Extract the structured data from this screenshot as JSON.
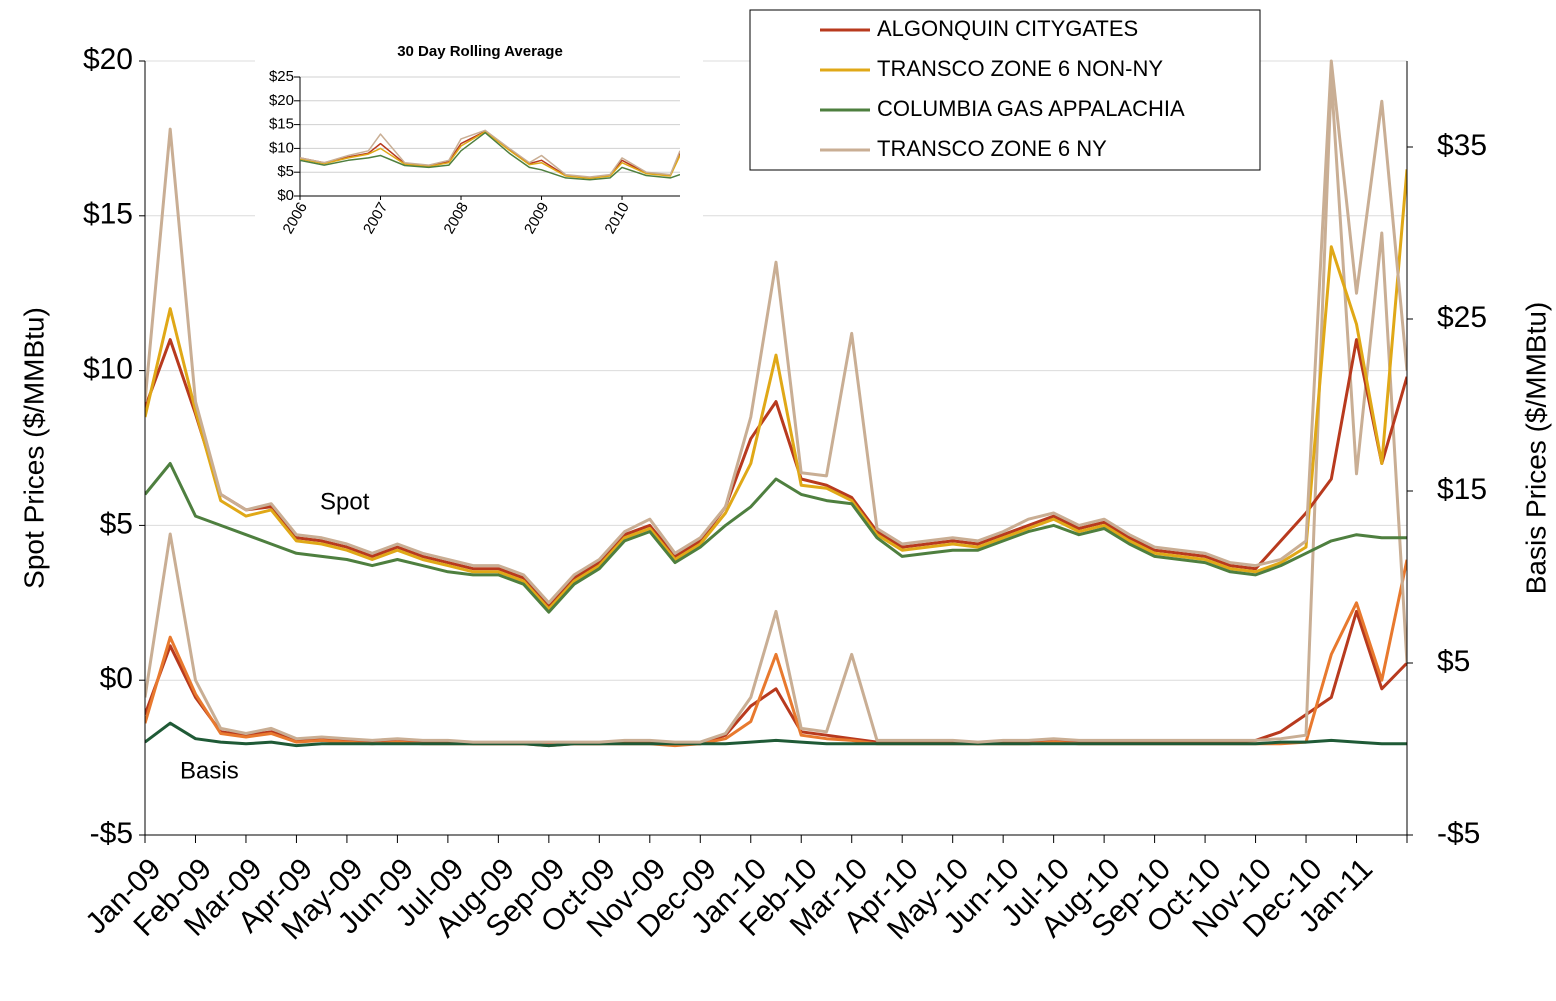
{
  "chart_data": [
    {
      "type": "line",
      "y_label": "Spot Prices ($/MMBtu)",
      "y2_label": "Basis Prices ($/MMBtu)",
      "annotations": [
        "Spot",
        "Basis"
      ],
      "grid": true,
      "categories": [
        "Jan-09",
        null,
        "Feb-09",
        null,
        "Mar-09",
        null,
        "Apr-09",
        null,
        "May-09",
        null,
        "Jun-09",
        null,
        "Jul-09",
        null,
        "Aug-09",
        null,
        "Sep-09",
        null,
        "Oct-09",
        null,
        "Nov-09",
        null,
        "Dec-09",
        null,
        "Jan-10",
        null,
        "Feb-10",
        null,
        "Mar-10",
        null,
        "Apr-10",
        null,
        "May-10",
        null,
        "Jun-10",
        null,
        "Jul-10",
        null,
        "Aug-10",
        null,
        "Sep-10",
        null,
        "Oct-10",
        null,
        "Nov-10",
        null,
        "Dec-10",
        null,
        "Jan-11",
        null,
        null
      ],
      "ylim": [
        -5,
        20
      ],
      "yticks": [
        {
          "value": -5,
          "label": "-$5"
        },
        {
          "value": 0,
          "label": "$0"
        },
        {
          "value": 5,
          "label": "$5"
        },
        {
          "value": 10,
          "label": "$10"
        },
        {
          "value": 15,
          "label": "$15"
        },
        {
          "value": 20,
          "label": "$20"
        }
      ],
      "y2lim": [
        -5,
        40
      ],
      "y2ticks": [
        {
          "value": -5,
          "label": "-$5"
        },
        {
          "value": 5,
          "label": "$5"
        },
        {
          "value": 15,
          "label": "$15"
        },
        {
          "value": 25,
          "label": "$25"
        },
        {
          "value": 35,
          "label": "$35"
        }
      ],
      "series": [
        {
          "name": "ALGONQUIN CITYGATES",
          "color": "#b83a1e",
          "values": [
            8.8,
            11,
            8.6,
            6,
            5.5,
            5.6,
            4.6,
            4.5,
            4.3,
            4.0,
            4.3,
            4.0,
            3.8,
            3.6,
            3.6,
            3.3,
            2.4,
            3.3,
            3.8,
            4.7,
            5.0,
            4.0,
            4.5,
            5.6,
            7.8,
            9.0,
            6.5,
            6.3,
            5.9,
            4.8,
            4.3,
            4.4,
            4.5,
            4.4,
            4.7,
            5.0,
            5.3,
            4.9,
            5.1,
            4.6,
            4.2,
            4.1,
            4.0,
            3.7,
            3.6,
            4.5,
            5.4,
            6.5,
            11,
            7,
            9.8
          ]
        },
        {
          "name": "TRANSCO ZONE 6 NON-NY",
          "color": "#e0a817",
          "values": [
            8.5,
            12,
            8.7,
            5.8,
            5.3,
            5.5,
            4.5,
            4.4,
            4.2,
            3.9,
            4.2,
            3.9,
            3.7,
            3.5,
            3.5,
            3.2,
            2.3,
            3.2,
            3.7,
            4.6,
            4.9,
            3.9,
            4.4,
            5.4,
            7.0,
            10.5,
            6.3,
            6.2,
            5.8,
            4.7,
            4.2,
            4.3,
            4.4,
            4.3,
            4.6,
            4.9,
            5.2,
            4.8,
            5.0,
            4.5,
            4.1,
            4.0,
            3.9,
            3.6,
            3.5,
            3.8,
            4.3,
            14,
            11.5,
            7,
            16.5
          ]
        },
        {
          "name": "COLUMBIA GAS APPALACHIA",
          "color": "#4e7f3f",
          "values": [
            6,
            7,
            5.3,
            5.0,
            4.7,
            4.4,
            4.1,
            4.0,
            3.9,
            3.7,
            3.9,
            3.7,
            3.5,
            3.4,
            3.4,
            3.1,
            2.2,
            3.1,
            3.6,
            4.5,
            4.8,
            3.8,
            4.3,
            5.0,
            5.6,
            6.5,
            6.0,
            5.8,
            5.7,
            4.6,
            4.0,
            4.1,
            4.2,
            4.2,
            4.5,
            4.8,
            5.0,
            4.7,
            4.9,
            4.4,
            4.0,
            3.9,
            3.8,
            3.5,
            3.4,
            3.7,
            4.1,
            4.5,
            4.7,
            4.6,
            4.6
          ]
        },
        {
          "name": "TRANSCO ZONE 6 NY",
          "color": "#c9ae94",
          "values": [
            9,
            17.8,
            9,
            6,
            5.5,
            5.7,
            4.7,
            4.6,
            4.4,
            4.1,
            4.4,
            4.1,
            3.9,
            3.7,
            3.7,
            3.4,
            2.5,
            3.4,
            3.9,
            4.8,
            5.2,
            4.1,
            4.6,
            5.6,
            8.5,
            13.5,
            6.7,
            6.6,
            11.2,
            4.9,
            4.4,
            4.5,
            4.6,
            4.5,
            4.8,
            5.2,
            5.4,
            5.0,
            5.2,
            4.7,
            4.3,
            4.2,
            4.1,
            3.8,
            3.7,
            3.9,
            4.5,
            20,
            12.5,
            18.7,
            10
          ]
        }
      ],
      "basis_series": [
        {
          "axis": "y2",
          "color": "#b83a1e",
          "values": [
            2,
            6,
            3,
            1,
            0.8,
            1.0,
            0.5,
            0.6,
            0.5,
            0.4,
            0.5,
            0.4,
            0.4,
            0.3,
            0.3,
            0.3,
            0.3,
            0.3,
            0.3,
            0.4,
            0.4,
            0.3,
            0.3,
            0.8,
            2.5,
            3.5,
            1.0,
            0.8,
            0.6,
            0.4,
            0.4,
            0.4,
            0.4,
            0.3,
            0.4,
            0.4,
            0.5,
            0.4,
            0.4,
            0.4,
            0.4,
            0.4,
            0.4,
            0.4,
            0.5,
            1.0,
            2.0,
            3.0,
            8.0,
            3.5,
            5.0
          ]
        },
        {
          "axis": "y2",
          "color": "#e8792e",
          "values": [
            1.5,
            6.5,
            3.2,
            0.9,
            0.7,
            0.9,
            0.4,
            0.5,
            0.4,
            0.3,
            0.4,
            0.3,
            0.3,
            0.3,
            0.3,
            0.3,
            0.2,
            0.3,
            0.3,
            0.3,
            0.3,
            0.2,
            0.3,
            0.6,
            1.6,
            5.5,
            0.8,
            0.6,
            0.5,
            0.3,
            0.3,
            0.3,
            0.3,
            0.3,
            0.3,
            0.3,
            0.4,
            0.3,
            0.3,
            0.3,
            0.3,
            0.3,
            0.3,
            0.3,
            0.3,
            0.3,
            0.4,
            5.5,
            8.5,
            4,
            11
          ]
        },
        {
          "axis": "y2",
          "color": "#1f5a36",
          "values": [
            0.4,
            1.5,
            0.6,
            0.4,
            0.3,
            0.4,
            0.2,
            0.3,
            0.3,
            0.3,
            0.3,
            0.3,
            0.3,
            0.3,
            0.3,
            0.3,
            0.2,
            0.3,
            0.3,
            0.3,
            0.3,
            0.3,
            0.3,
            0.3,
            0.4,
            0.5,
            0.4,
            0.3,
            0.3,
            0.3,
            0.3,
            0.3,
            0.3,
            0.3,
            0.3,
            0.3,
            0.3,
            0.3,
            0.3,
            0.3,
            0.3,
            0.3,
            0.3,
            0.3,
            0.3,
            0.4,
            0.4,
            0.5,
            0.4,
            0.3,
            0.3
          ]
        },
        {
          "axis": "y2",
          "color": "#c9ae94",
          "values": [
            3,
            12.5,
            4,
            1.2,
            0.9,
            1.2,
            0.6,
            0.7,
            0.6,
            0.5,
            0.6,
            0.5,
            0.5,
            0.4,
            0.4,
            0.4,
            0.4,
            0.4,
            0.4,
            0.5,
            0.5,
            0.4,
            0.4,
            0.9,
            3.0,
            8.0,
            1.2,
            1.0,
            5.5,
            0.5,
            0.5,
            0.5,
            0.5,
            0.4,
            0.5,
            0.5,
            0.6,
            0.5,
            0.5,
            0.5,
            0.5,
            0.5,
            0.5,
            0.5,
            0.5,
            0.6,
            0.8,
            39,
            16,
            30,
            5
          ]
        }
      ]
    },
    {
      "type": "line",
      "title": "30 Day Rolling Average",
      "grid": true,
      "x": [
        2006,
        2006.3,
        2006.6,
        2006.85,
        2007,
        2007.3,
        2007.6,
        2007.85,
        2008,
        2008.3,
        2008.6,
        2008.85,
        2009,
        2009.3,
        2009.6,
        2009.85,
        2010,
        2010.3,
        2010.6,
        2010.72
      ],
      "xlim": [
        2006,
        2010.72
      ],
      "xticks": [
        2006,
        2007,
        2008,
        2009,
        2010
      ],
      "ylim": [
        0,
        25
      ],
      "yticks": [
        {
          "value": 0,
          "label": "$0"
        },
        {
          "value": 5,
          "label": "$5"
        },
        {
          "value": 10,
          "label": "$10"
        },
        {
          "value": 15,
          "label": "$15"
        },
        {
          "value": 20,
          "label": "$20"
        },
        {
          "value": 25,
          "label": "$25"
        }
      ],
      "series": [
        {
          "color": "#b83a1e",
          "values": [
            8,
            7,
            8.2,
            9,
            11,
            6.8,
            6.3,
            7.2,
            11,
            13.6,
            9.8,
            6.8,
            7.5,
            4.3,
            3.8,
            4.3,
            7.5,
            4.8,
            4.3,
            9
          ]
        },
        {
          "color": "#e0a817",
          "values": [
            7.8,
            6.8,
            8,
            8.8,
            10,
            6.7,
            6.2,
            7,
            10.5,
            13.5,
            9.6,
            6.6,
            7,
            4.2,
            3.7,
            4.2,
            7,
            4.7,
            4.2,
            8.5
          ]
        },
        {
          "color": "#4e7f3f",
          "values": [
            7.5,
            6.5,
            7.5,
            8,
            8.5,
            6.4,
            6,
            6.5,
            9.5,
            13.3,
            9,
            6,
            5.5,
            3.8,
            3.4,
            3.8,
            6,
            4.3,
            3.8,
            4.5
          ]
        },
        {
          "color": "#c9ae94",
          "values": [
            8,
            7,
            8.5,
            9.5,
            13,
            7,
            6.5,
            7.5,
            12,
            13.8,
            10,
            7,
            8.5,
            4.5,
            4,
            4.5,
            8,
            5,
            4.5,
            9.5
          ]
        }
      ]
    }
  ]
}
